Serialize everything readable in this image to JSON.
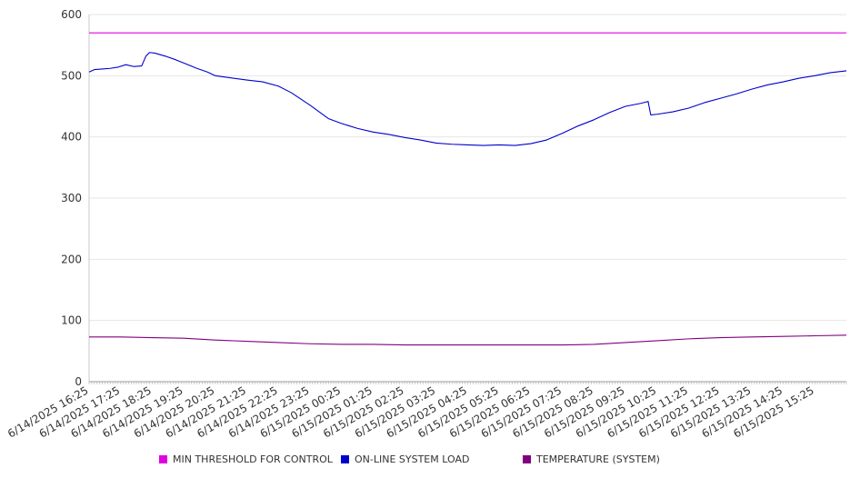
{
  "chart_data": {
    "type": "line",
    "title": "",
    "xlabel": "",
    "ylabel": "",
    "ylim": [
      0,
      600
    ],
    "y_ticks": [
      0,
      100,
      200,
      300,
      400,
      500,
      600
    ],
    "grid": true,
    "legend_position": "bottom",
    "x_tick_labels": [
      "6/14/2025 16:25",
      "6/14/2025 17:25",
      "6/14/2025 18:25",
      "6/14/2025 19:25",
      "6/14/2025 20:25",
      "6/14/2025 21:25",
      "6/14/2025 22:25",
      "6/14/2025 23:25",
      "6/15/2025 00:25",
      "6/15/2025 01:25",
      "6/15/2025 02:25",
      "6/15/2025 03:25",
      "6/15/2025 04:25",
      "6/15/2025 05:25",
      "6/15/2025 06:25",
      "6/15/2025 07:25",
      "6/15/2025 08:25",
      "6/15/2025 09:25",
      "6/15/2025 10:25",
      "6/15/2025 11:25",
      "6/15/2025 12:25",
      "6/15/2025 13:25",
      "6/15/2025 14:25",
      "6/15/2025 15:25"
    ],
    "x_range": [
      "6/14/2025 16:25",
      "6/15/2025 16:25"
    ],
    "series": [
      {
        "name": "MIN THRESHOLD FOR CONTROL",
        "color": "#e000e0",
        "points": [
          [
            "6/14/2025 16:25",
            570
          ],
          [
            "6/15/2025 16:25",
            570
          ]
        ]
      },
      {
        "name": "ON-LINE SYSTEM LOAD",
        "color": "#0000cc",
        "points": [
          [
            "6/14/2025 16:25",
            506
          ],
          [
            "6/14/2025 16:35",
            510
          ],
          [
            "6/14/2025 16:50",
            511
          ],
          [
            "6/14/2025 17:05",
            512
          ],
          [
            "6/14/2025 17:20",
            514
          ],
          [
            "6/14/2025 17:35",
            518
          ],
          [
            "6/14/2025 17:50",
            515
          ],
          [
            "6/14/2025 18:05",
            516
          ],
          [
            "6/14/2025 18:13",
            532
          ],
          [
            "6/14/2025 18:20",
            538
          ],
          [
            "6/14/2025 18:30",
            537
          ],
          [
            "6/14/2025 18:50",
            532
          ],
          [
            "6/14/2025 19:10",
            526
          ],
          [
            "6/14/2025 19:30",
            519
          ],
          [
            "6/14/2025 19:50",
            512
          ],
          [
            "6/14/2025 20:10",
            506
          ],
          [
            "6/14/2025 20:25",
            500
          ],
          [
            "6/14/2025 20:50",
            497
          ],
          [
            "6/14/2025 21:25",
            493
          ],
          [
            "6/14/2025 21:55",
            490
          ],
          [
            "6/14/2025 22:25",
            483
          ],
          [
            "6/14/2025 22:50",
            472
          ],
          [
            "6/14/2025 23:25",
            452
          ],
          [
            "6/15/2025 00:00",
            430
          ],
          [
            "6/15/2025 00:25",
            422
          ],
          [
            "6/15/2025 00:55",
            414
          ],
          [
            "6/15/2025 01:25",
            408
          ],
          [
            "6/15/2025 01:55",
            404
          ],
          [
            "6/15/2025 02:25",
            399
          ],
          [
            "6/15/2025 02:55",
            395
          ],
          [
            "6/15/2025 03:25",
            390
          ],
          [
            "6/15/2025 03:55",
            388
          ],
          [
            "6/15/2025 04:25",
            387
          ],
          [
            "6/15/2025 04:55",
            386
          ],
          [
            "6/15/2025 05:25",
            387
          ],
          [
            "6/15/2025 05:55",
            386
          ],
          [
            "6/15/2025 06:25",
            389
          ],
          [
            "6/15/2025 06:55",
            395
          ],
          [
            "6/15/2025 07:25",
            406
          ],
          [
            "6/15/2025 07:55",
            418
          ],
          [
            "6/15/2025 08:25",
            428
          ],
          [
            "6/15/2025 08:55",
            440
          ],
          [
            "6/15/2025 09:25",
            450
          ],
          [
            "6/15/2025 09:55",
            455
          ],
          [
            "6/15/2025 10:08",
            458
          ],
          [
            "6/15/2025 10:13",
            436
          ],
          [
            "6/15/2025 10:25",
            437
          ],
          [
            "6/15/2025 10:55",
            441
          ],
          [
            "6/15/2025 11:25",
            447
          ],
          [
            "6/15/2025 11:55",
            456
          ],
          [
            "6/15/2025 12:25",
            463
          ],
          [
            "6/15/2025 12:55",
            470
          ],
          [
            "6/15/2025 13:25",
            478
          ],
          [
            "6/15/2025 13:55",
            485
          ],
          [
            "6/15/2025 14:25",
            490
          ],
          [
            "6/15/2025 14:55",
            496
          ],
          [
            "6/15/2025 15:25",
            500
          ],
          [
            "6/15/2025 15:55",
            505
          ],
          [
            "6/15/2025 16:25",
            508
          ]
        ]
      },
      {
        "name": "TEMPERATURE (SYSTEM)",
        "color": "#800080",
        "points": [
          [
            "6/14/2025 16:25",
            73
          ],
          [
            "6/14/2025 17:25",
            73
          ],
          [
            "6/14/2025 18:25",
            72
          ],
          [
            "6/14/2025 19:25",
            71
          ],
          [
            "6/14/2025 20:25",
            68
          ],
          [
            "6/14/2025 21:25",
            66
          ],
          [
            "6/14/2025 22:25",
            64
          ],
          [
            "6/14/2025 23:25",
            62
          ],
          [
            "6/15/2025 00:25",
            61
          ],
          [
            "6/15/2025 01:25",
            61
          ],
          [
            "6/15/2025 02:25",
            60
          ],
          [
            "6/15/2025 03:25",
            60
          ],
          [
            "6/15/2025 04:25",
            60
          ],
          [
            "6/15/2025 05:25",
            60
          ],
          [
            "6/15/2025 06:25",
            60
          ],
          [
            "6/15/2025 07:25",
            60
          ],
          [
            "6/15/2025 08:25",
            61
          ],
          [
            "6/15/2025 09:25",
            64
          ],
          [
            "6/15/2025 10:25",
            67
          ],
          [
            "6/15/2025 11:25",
            70
          ],
          [
            "6/15/2025 12:25",
            72
          ],
          [
            "6/15/2025 13:25",
            73
          ],
          [
            "6/15/2025 14:25",
            74
          ],
          [
            "6/15/2025 15:25",
            75
          ],
          [
            "6/15/2025 16:25",
            76
          ]
        ]
      }
    ]
  }
}
